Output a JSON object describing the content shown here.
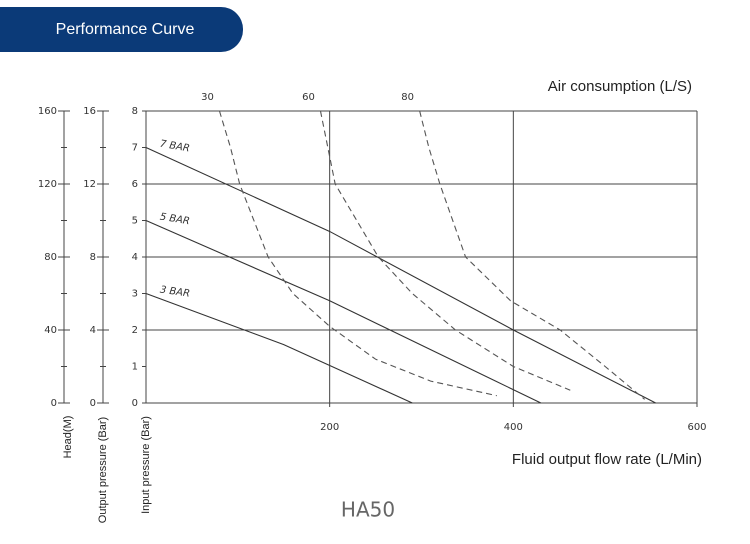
{
  "header": {
    "title": "Performance Curve"
  },
  "chart_data": {
    "type": "line",
    "xlabel": "Fluid output flow rate (L/Min)",
    "ylabel": "Input pressure (Bar)",
    "xlim": [
      0,
      600
    ],
    "xticks": [
      200,
      400,
      600
    ],
    "ylim": [
      0,
      8
    ],
    "yticks": [
      0,
      1,
      2,
      3,
      4,
      5,
      6,
      7,
      8
    ],
    "xgrid": [
      200,
      400
    ],
    "ygrid": [
      2,
      4,
      6
    ],
    "extra_axes": [
      {
        "label": "Output pressure (Bar)",
        "lim": [
          0,
          16
        ],
        "ticks": [
          0,
          4,
          8,
          12,
          16
        ]
      },
      {
        "label": "Head(M)",
        "lim": [
          0,
          160
        ],
        "ticks": [
          0,
          40,
          80,
          120,
          160
        ]
      }
    ],
    "curve_group_label": "Air consumption (L/S)",
    "series": [
      {
        "name": "3 BAR",
        "color": "#333333",
        "style": "solid",
        "x": [
          0,
          150,
          290
        ],
        "values": [
          3,
          1.6,
          0
        ]
      },
      {
        "name": "5 BAR",
        "color": "#333333",
        "style": "solid",
        "x": [
          0,
          200,
          430
        ],
        "values": [
          5,
          2.8,
          0
        ]
      },
      {
        "name": "7 BAR",
        "color": "#333333",
        "style": "solid",
        "x": [
          0,
          200,
          400,
          555
        ],
        "values": [
          7,
          4.7,
          2,
          0
        ]
      },
      {
        "name": "30",
        "color": "#555555",
        "style": "dashed",
        "x": [
          80,
          92,
          102,
          133,
          160,
          200,
          250,
          310,
          382
        ],
        "values": [
          8,
          7,
          6,
          4,
          3,
          2.1,
          1.2,
          0.6,
          0.2
        ]
      },
      {
        "name": "60",
        "color": "#555555",
        "style": "dashed",
        "x": [
          190,
          198,
          206,
          253,
          290,
          337,
          400,
          462
        ],
        "values": [
          8,
          7,
          6,
          4,
          3,
          2,
          1,
          0.35
        ]
      },
      {
        "name": "80",
        "color": "#555555",
        "style": "dashed",
        "x": [
          298,
          308,
          320,
          348,
          397,
          451,
          500,
          543
        ],
        "values": [
          8,
          7,
          6,
          4,
          2.8,
          2,
          1,
          0.1
        ]
      }
    ],
    "model": "HA50"
  }
}
